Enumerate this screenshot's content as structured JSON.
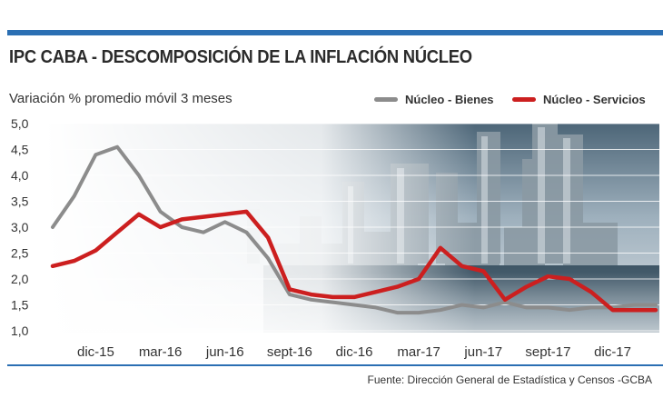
{
  "header": {
    "title": "IPC CABA - DESCOMPOSICIÓN DE LA INFLACIÓN NÚCLEO",
    "subtitle": "Variación % promedio móvil 3 meses"
  },
  "footer": {
    "source": "Fuente: Dirección General de Estadística y Censos -GCBA"
  },
  "colors": {
    "bienes": "#8c8c8c",
    "servicios": "#cc1f1f",
    "accent": "#2b6fb3"
  },
  "chart_data": {
    "type": "line",
    "title": "IPC CABA - DESCOMPOSICIÓN DE LA INFLACIÓN NÚCLEO",
    "ylabel": "Variación % promedio móvil 3 meses",
    "ylim": [
      1.0,
      5.0
    ],
    "yticks": [
      "1,0",
      "1,5",
      "2,0",
      "2,5",
      "3,0",
      "3,5",
      "4,0",
      "4,5",
      "5,0"
    ],
    "xtick_labels": [
      "dic-15",
      "mar-16",
      "jun-16",
      "sept-16",
      "dic-16",
      "mar-17",
      "jun-17",
      "sept-17",
      "dic-17"
    ],
    "x": [
      "oct-15",
      "nov-15",
      "dic-15",
      "ene-16",
      "feb-16",
      "mar-16",
      "abr-16",
      "may-16",
      "jun-16",
      "jul-16",
      "ago-16",
      "sept-16",
      "oct-16",
      "nov-16",
      "dic-16",
      "ene-17",
      "feb-17",
      "mar-17",
      "abr-17",
      "may-17",
      "jun-17",
      "jul-17",
      "ago-17",
      "sept-17",
      "oct-17",
      "nov-17",
      "dic-17",
      "ene-18",
      "feb-18"
    ],
    "grid": true,
    "legend": "top-right",
    "series": [
      {
        "name": "Núcleo - Bienes",
        "values": [
          3.0,
          3.6,
          4.4,
          4.55,
          4.0,
          3.3,
          3.0,
          2.9,
          3.1,
          2.9,
          2.4,
          1.7,
          1.6,
          1.55,
          1.5,
          1.45,
          1.35,
          1.35,
          1.4,
          1.5,
          1.45,
          1.55,
          1.45,
          1.45,
          1.4,
          1.45,
          1.45,
          1.5,
          1.5
        ]
      },
      {
        "name": "Núcleo - Servicios",
        "values": [
          2.25,
          2.35,
          2.55,
          2.9,
          3.25,
          3.0,
          3.15,
          3.2,
          3.25,
          3.3,
          2.8,
          1.8,
          1.7,
          1.65,
          1.65,
          1.75,
          1.85,
          2.0,
          2.6,
          2.25,
          2.15,
          1.6,
          1.85,
          2.05,
          2.0,
          1.75,
          1.4,
          1.4,
          1.4
        ]
      }
    ]
  }
}
